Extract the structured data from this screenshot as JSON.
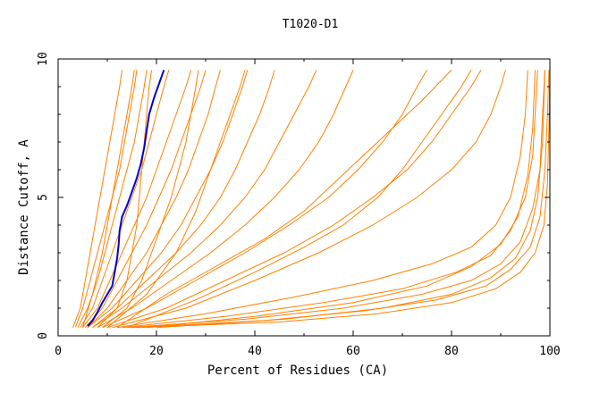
{
  "chart_data": {
    "type": "line",
    "title": "T1020-D1",
    "xlabel": "Percent of Residues (CA)",
    "ylabel": "Distance Cutoff, A",
    "xlim": [
      0,
      100
    ],
    "ylim": [
      0,
      10
    ],
    "x_ticks": [
      0,
      20,
      40,
      60,
      80,
      100
    ],
    "y_ticks": [
      0,
      5,
      10
    ],
    "grid": false,
    "colors": {
      "group": "#ff8000",
      "highlight": "#0000cc"
    },
    "highlight_series": {
      "name": "",
      "points": [
        [
          6,
          0.35
        ],
        [
          7,
          0.55
        ],
        [
          8,
          0.85
        ],
        [
          9,
          1.2
        ],
        [
          10,
          1.5
        ],
        [
          11,
          1.8
        ],
        [
          11.5,
          2.3
        ],
        [
          12,
          2.8
        ],
        [
          12.3,
          3.3
        ],
        [
          12.5,
          3.8
        ],
        [
          13,
          4.3
        ],
        [
          14,
          4.7
        ],
        [
          15,
          5.2
        ],
        [
          16,
          5.7
        ],
        [
          16.8,
          6.2
        ],
        [
          17.5,
          6.8
        ],
        [
          18,
          7.4
        ],
        [
          18.5,
          8.0
        ],
        [
          19.5,
          8.6
        ],
        [
          20.5,
          9.1
        ],
        [
          21.5,
          9.6
        ]
      ]
    },
    "series": [
      {
        "points": [
          [
            3,
            0.3
          ],
          [
            4.5,
            1
          ],
          [
            5.5,
            2
          ],
          [
            6.5,
            3
          ],
          [
            7.5,
            4
          ],
          [
            8.5,
            5
          ],
          [
            9.5,
            6
          ],
          [
            10.5,
            7
          ],
          [
            11.5,
            8
          ],
          [
            12.5,
            9
          ],
          [
            13,
            9.6
          ]
        ]
      },
      {
        "points": [
          [
            3.5,
            0.3
          ],
          [
            5,
            1
          ],
          [
            6.5,
            2
          ],
          [
            8,
            3
          ],
          [
            9.5,
            4
          ],
          [
            11,
            5
          ],
          [
            12.5,
            6
          ],
          [
            13.5,
            7
          ],
          [
            14.5,
            8
          ],
          [
            15.5,
            9
          ],
          [
            16,
            9.6
          ]
        ]
      },
      {
        "points": [
          [
            4,
            0.3
          ],
          [
            6,
            1
          ],
          [
            8,
            2
          ],
          [
            9.5,
            3
          ],
          [
            11,
            4
          ],
          [
            12.5,
            5
          ],
          [
            14,
            6
          ],
          [
            15.5,
            7
          ],
          [
            16.5,
            8
          ],
          [
            17.5,
            9
          ],
          [
            18,
            9.6
          ]
        ]
      },
      {
        "points": [
          [
            4.5,
            0.3
          ],
          [
            7,
            1
          ],
          [
            9,
            2
          ],
          [
            11,
            3
          ],
          [
            13,
            4
          ],
          [
            15,
            5
          ],
          [
            17,
            6
          ],
          [
            18.5,
            7
          ],
          [
            20,
            8
          ],
          [
            21.5,
            9
          ],
          [
            22.5,
            9.6
          ]
        ]
      },
      {
        "points": [
          [
            5,
            0.3
          ],
          [
            8,
            1
          ],
          [
            10.5,
            2
          ],
          [
            13,
            3
          ],
          [
            15.5,
            4
          ],
          [
            18,
            5
          ],
          [
            20,
            6
          ],
          [
            22,
            7
          ],
          [
            24,
            8
          ],
          [
            26,
            9
          ],
          [
            27,
            9.6
          ]
        ]
      },
      {
        "points": [
          [
            5.5,
            0.3
          ],
          [
            9,
            1
          ],
          [
            12,
            2
          ],
          [
            15,
            3
          ],
          [
            18,
            4
          ],
          [
            20.5,
            5
          ],
          [
            23,
            6
          ],
          [
            25,
            7
          ],
          [
            27,
            8
          ],
          [
            29,
            9
          ],
          [
            30,
            9.6
          ]
        ]
      },
      {
        "points": [
          [
            6,
            0.3
          ],
          [
            10,
            1
          ],
          [
            14,
            2
          ],
          [
            18,
            3
          ],
          [
            21,
            4
          ],
          [
            24,
            5
          ],
          [
            26.5,
            6
          ],
          [
            28.5,
            7
          ],
          [
            30.5,
            8
          ],
          [
            32,
            9
          ],
          [
            33,
            9.6
          ]
        ]
      },
      {
        "points": [
          [
            6,
            0.3
          ],
          [
            11,
            1
          ],
          [
            16,
            2
          ],
          [
            21,
            3
          ],
          [
            25,
            4
          ],
          [
            28,
            5
          ],
          [
            31,
            6
          ],
          [
            33.5,
            7
          ],
          [
            35.5,
            8
          ],
          [
            37.5,
            9
          ],
          [
            38.5,
            9.6
          ]
        ]
      },
      {
        "points": [
          [
            7,
            0.3
          ],
          [
            12,
            1
          ],
          [
            18,
            2
          ],
          [
            24,
            3
          ],
          [
            29,
            4
          ],
          [
            33,
            5
          ],
          [
            36,
            6
          ],
          [
            38.5,
            7
          ],
          [
            41,
            8
          ],
          [
            43,
            9
          ],
          [
            44,
            9.6
          ]
        ]
      },
      {
        "points": [
          [
            7,
            0.3
          ],
          [
            13,
            1
          ],
          [
            20,
            2
          ],
          [
            27,
            3
          ],
          [
            33,
            4
          ],
          [
            38,
            5
          ],
          [
            42,
            6
          ],
          [
            45,
            7
          ],
          [
            48,
            8
          ],
          [
            51,
            9
          ],
          [
            52.5,
            9.6
          ]
        ]
      },
      {
        "points": [
          [
            8,
            0.3
          ],
          [
            15,
            1
          ],
          [
            23,
            2
          ],
          [
            31,
            3
          ],
          [
            38,
            4
          ],
          [
            44,
            5
          ],
          [
            49,
            6
          ],
          [
            53,
            7
          ],
          [
            56,
            8
          ],
          [
            58.5,
            9
          ],
          [
            60,
            9.6
          ]
        ]
      },
      {
        "points": [
          [
            9,
            0.3
          ],
          [
            18,
            1
          ],
          [
            28,
            2
          ],
          [
            38,
            3
          ],
          [
            47,
            4
          ],
          [
            55,
            5
          ],
          [
            61,
            6
          ],
          [
            66,
            7
          ],
          [
            70,
            8
          ],
          [
            73,
            9
          ],
          [
            75,
            9.6
          ]
        ]
      },
      {
        "points": [
          [
            10,
            0.3
          ],
          [
            22,
            1
          ],
          [
            34,
            2
          ],
          [
            46,
            3
          ],
          [
            56,
            4
          ],
          [
            64,
            5
          ],
          [
            71,
            6
          ],
          [
            76,
            7
          ],
          [
            80,
            8
          ],
          [
            84,
            9
          ],
          [
            86,
            9.6
          ]
        ]
      },
      {
        "points": [
          [
            11,
            0.3
          ],
          [
            26,
            1
          ],
          [
            40,
            2
          ],
          [
            53,
            3
          ],
          [
            64,
            4
          ],
          [
            73,
            5
          ],
          [
            80,
            6
          ],
          [
            85,
            7
          ],
          [
            88,
            8
          ],
          [
            90,
            9
          ],
          [
            91,
            9.6
          ]
        ]
      },
      {
        "points": [
          [
            12,
            0.3
          ],
          [
            30,
            0.8
          ],
          [
            48,
            1.4
          ],
          [
            64,
            2
          ],
          [
            76,
            2.6
          ],
          [
            84,
            3.2
          ],
          [
            89,
            4
          ],
          [
            92,
            5
          ],
          [
            94,
            6.5
          ],
          [
            95,
            8
          ],
          [
            95.5,
            9.6
          ]
        ]
      },
      {
        "points": [
          [
            13,
            0.3
          ],
          [
            34,
            0.7
          ],
          [
            54,
            1.2
          ],
          [
            70,
            1.7
          ],
          [
            81,
            2.3
          ],
          [
            88,
            2.9
          ],
          [
            92,
            3.8
          ],
          [
            95,
            5
          ],
          [
            96.5,
            6.5
          ],
          [
            97,
            8
          ],
          [
            97.5,
            9.6
          ]
        ]
      },
      {
        "points": [
          [
            14,
            0.3
          ],
          [
            38,
            0.6
          ],
          [
            58,
            1.0
          ],
          [
            74,
            1.5
          ],
          [
            84,
            2.0
          ],
          [
            90,
            2.6
          ],
          [
            94,
            3.4
          ],
          [
            96.5,
            4.6
          ],
          [
            98,
            6
          ],
          [
            98.5,
            8
          ],
          [
            99,
            9.6
          ]
        ]
      },
      {
        "points": [
          [
            15,
            0.3
          ],
          [
            42,
            0.55
          ],
          [
            62,
            0.9
          ],
          [
            77,
            1.3
          ],
          [
            87,
            1.8
          ],
          [
            92,
            2.4
          ],
          [
            96,
            3.2
          ],
          [
            98,
            4.3
          ],
          [
            99,
            6
          ],
          [
            99.5,
            8
          ],
          [
            99.8,
            9.6
          ]
        ]
      },
      {
        "points": [
          [
            16,
            0.3
          ],
          [
            45,
            0.5
          ],
          [
            65,
            0.8
          ],
          [
            80,
            1.2
          ],
          [
            89,
            1.7
          ],
          [
            94,
            2.3
          ],
          [
            97,
            3.0
          ],
          [
            98.8,
            4.0
          ],
          [
            99.5,
            5.5
          ],
          [
            99.8,
            7.5
          ],
          [
            100,
            9.6
          ]
        ]
      },
      {
        "points": [
          [
            8,
            0.3
          ],
          [
            12,
            1
          ],
          [
            14,
            2
          ],
          [
            15,
            3
          ],
          [
            16,
            4
          ],
          [
            16.5,
            5
          ],
          [
            17,
            6
          ],
          [
            17.5,
            7
          ],
          [
            18,
            8
          ],
          [
            18.5,
            9
          ],
          [
            19,
            9.6
          ]
        ]
      },
      {
        "points": [
          [
            9,
            0.3
          ],
          [
            14,
            1
          ],
          [
            17,
            2
          ],
          [
            19,
            3
          ],
          [
            21,
            4
          ],
          [
            23,
            5
          ],
          [
            24.5,
            6
          ],
          [
            26,
            7
          ],
          [
            27,
            8
          ],
          [
            28,
            9
          ],
          [
            28.5,
            9.6
          ]
        ]
      },
      {
        "points": [
          [
            10,
            0.3
          ],
          [
            18,
            1.5
          ],
          [
            24,
            3
          ],
          [
            28,
            4.5
          ],
          [
            31,
            6
          ],
          [
            34,
            7.5
          ],
          [
            37,
            9
          ],
          [
            38,
            9.6
          ]
        ]
      },
      {
        "points": [
          [
            12,
            0.3
          ],
          [
            22,
            1.5
          ],
          [
            32,
            2.5
          ],
          [
            42,
            3.5
          ],
          [
            50,
            4.5
          ],
          [
            56,
            5.5
          ],
          [
            62,
            6.5
          ],
          [
            68,
            7.5
          ],
          [
            74,
            8.5
          ],
          [
            80,
            9.6
          ]
        ]
      },
      {
        "points": [
          [
            14,
            0.3
          ],
          [
            28,
            1.3
          ],
          [
            40,
            2.3
          ],
          [
            50,
            3.2
          ],
          [
            58,
            4
          ],
          [
            65,
            5
          ],
          [
            70,
            6
          ],
          [
            74,
            7
          ],
          [
            78,
            8
          ],
          [
            82,
            9
          ],
          [
            84,
            9.6
          ]
        ]
      },
      {
        "points": [
          [
            5,
            0.3
          ],
          [
            7,
            1.5
          ],
          [
            9,
            3
          ],
          [
            10.5,
            4.5
          ],
          [
            12,
            6
          ],
          [
            13.5,
            7.5
          ],
          [
            15,
            9
          ],
          [
            15.5,
            9.6
          ]
        ]
      },
      {
        "points": [
          [
            20,
            0.3
          ],
          [
            46,
            0.6
          ],
          [
            66,
            1
          ],
          [
            80,
            1.5
          ],
          [
            88,
            2.1
          ],
          [
            93,
            2.8
          ],
          [
            96,
            3.8
          ],
          [
            97.5,
            5
          ],
          [
            98.5,
            7
          ],
          [
            99,
            9.6
          ]
        ]
      },
      {
        "points": [
          [
            18,
            0.3
          ],
          [
            40,
            0.7
          ],
          [
            60,
            1.2
          ],
          [
            75,
            1.8
          ],
          [
            84,
            2.5
          ],
          [
            90,
            3.3
          ],
          [
            93.5,
            4.3
          ],
          [
            95.5,
            5.8
          ],
          [
            96.5,
            7.5
          ],
          [
            97,
            9.6
          ]
        ]
      }
    ]
  }
}
